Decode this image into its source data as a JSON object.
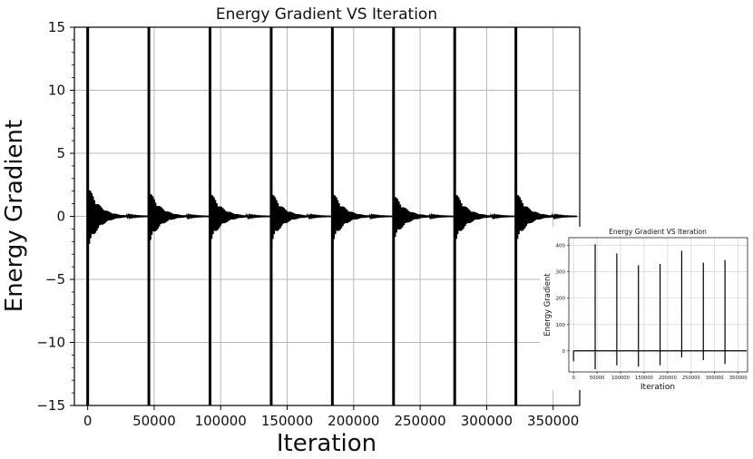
{
  "chart_data": [
    {
      "type": "line",
      "title": "Energy Gradient VS Iteration",
      "xlabel": "Iteration",
      "ylabel": "Energy Gradient",
      "xlim": [
        -10000,
        370000
      ],
      "ylim": [
        -15,
        15
      ],
      "xticks": [
        0,
        50000,
        100000,
        150000,
        200000,
        250000,
        300000,
        350000
      ],
      "xtick_labels": [
        "0",
        "50000",
        "100000",
        "150000",
        "200000",
        "250000",
        "300000",
        "350000"
      ],
      "yticks": [
        -15,
        -10,
        -5,
        0,
        5,
        10,
        15
      ],
      "ytick_labels": [
        "−15",
        "−10",
        "−5",
        "0",
        "5",
        "10",
        "15"
      ],
      "grid": true,
      "color": "#000000",
      "restart_iterations": [
        0,
        46000,
        92000,
        138000,
        184000,
        230000,
        276000,
        322000
      ],
      "burst_amplitude_start": [
        2.7,
        2.3,
        2.2,
        2.2,
        2.2,
        2.0,
        2.2,
        2.2
      ],
      "series": [
        {
          "values_note_free": true,
          "x": [
            0,
            46000,
            92000,
            138000,
            184000,
            230000,
            276000,
            322000,
            368000
          ],
          "y": [
            0,
            0,
            0,
            0,
            0,
            0,
            0,
            0,
            0
          ]
        }
      ]
    },
    {
      "type": "line",
      "title": "Energy Gradient VS Iteration",
      "xlabel": "Iteration",
      "ylabel": "Energy Gradient",
      "xlim": [
        -10000,
        370000
      ],
      "ylim": [
        -80,
        430
      ],
      "xticks": [
        0,
        50000,
        100000,
        150000,
        200000,
        250000,
        300000,
        350000
      ],
      "xtick_labels": [
        "0",
        "50000",
        "100000",
        "150000",
        "200000",
        "250000",
        "300000",
        "350000"
      ],
      "yticks": [
        0,
        100,
        200,
        300,
        400
      ],
      "ytick_labels": [
        "0",
        "100",
        "200",
        "300",
        "400"
      ],
      "grid": true,
      "color": "#000000",
      "spikes": [
        {
          "x": 0,
          "max": 0,
          "min": -40
        },
        {
          "x": 46000,
          "max": 405,
          "min": -70
        },
        {
          "x": 92000,
          "max": 370,
          "min": -55
        },
        {
          "x": 138000,
          "max": 325,
          "min": -60
        },
        {
          "x": 184000,
          "max": 330,
          "min": -55
        },
        {
          "x": 230000,
          "max": 380,
          "min": -25
        },
        {
          "x": 276000,
          "max": 335,
          "min": -35
        },
        {
          "x": 322000,
          "max": 345,
          "min": -50
        }
      ]
    }
  ]
}
